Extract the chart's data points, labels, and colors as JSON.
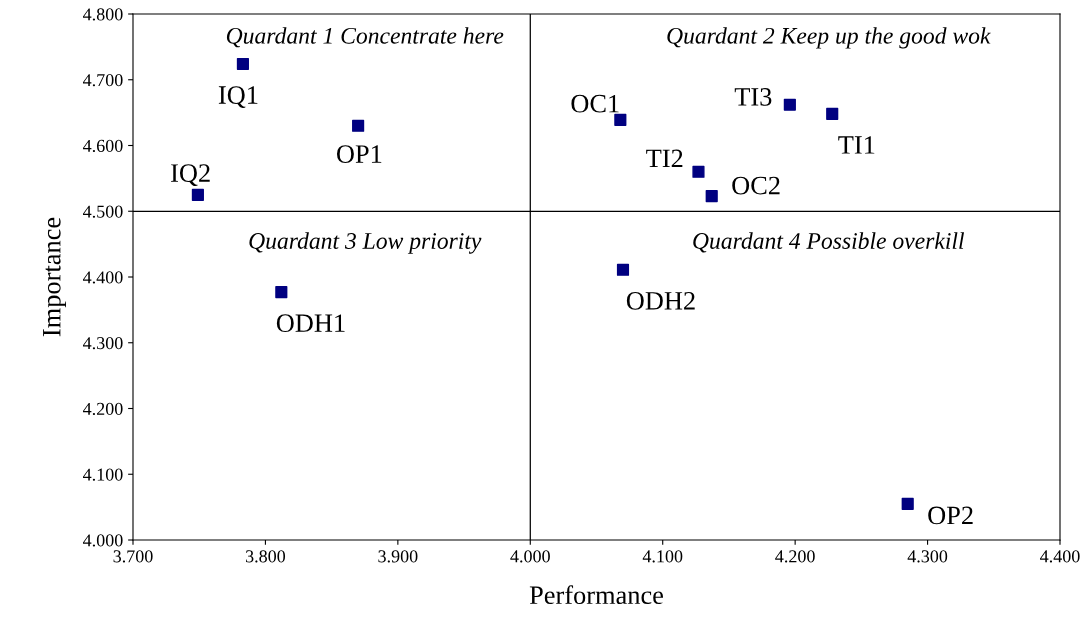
{
  "chart_data": {
    "type": "scatter",
    "xlabel": "Performance",
    "ylabel": "Importance",
    "x": [
      3.783,
      3.749,
      3.87,
      4.068,
      4.127,
      4.137,
      4.196,
      4.228,
      3.812,
      4.07,
      4.285
    ],
    "series": [
      {
        "color": "#000080",
        "values": [
          4.724,
          4.525,
          4.63,
          4.639,
          4.56,
          4.523,
          4.662,
          4.648,
          4.377,
          4.411,
          4.055
        ]
      }
    ],
    "marker": "square",
    "xlim": [
      3.7,
      4.4
    ],
    "xticks": [
      {
        "value": 3.7,
        "label": "3.700"
      },
      {
        "value": 3.8,
        "label": "3.800"
      },
      {
        "value": 3.9,
        "label": "3.900"
      },
      {
        "value": 4.0,
        "label": "4.000"
      },
      {
        "value": 4.1,
        "label": "4.100"
      },
      {
        "value": 4.2,
        "label": "4.200"
      },
      {
        "value": 4.3,
        "label": "4.300"
      },
      {
        "value": 4.4,
        "label": "4.400"
      }
    ],
    "ylim": [
      4.0,
      4.8
    ],
    "yticks": [
      {
        "value": 4.0,
        "label": "4.000"
      },
      {
        "value": 4.1,
        "label": "4.100"
      },
      {
        "value": 4.2,
        "label": "4.200"
      },
      {
        "value": 4.3,
        "label": "4.300"
      },
      {
        "value": 4.4,
        "label": "4.400"
      },
      {
        "value": 4.5,
        "label": "4.500"
      },
      {
        "value": 4.6,
        "label": "4.600"
      },
      {
        "value": 4.7,
        "label": "4.700"
      },
      {
        "value": 4.8,
        "label": "4.800"
      }
    ],
    "ref_lines": [
      {
        "axis": "x",
        "value": 4.0,
        "color": "#000000"
      },
      {
        "axis": "y",
        "value": 4.5,
        "color": "#000000"
      }
    ],
    "annotations": [
      "Quardant 1 Concentrate here",
      "Quardant 2 Keep up the good wok",
      "Quardant 3 Low priority",
      "Quardant 4 Possible overkill",
      {
        "text": "IQ1",
        "x": 3.783,
        "y": 4.724
      },
      {
        "text": "IQ2",
        "x": 3.749,
        "y": 4.525
      },
      {
        "text": "OP1",
        "x": 3.87,
        "y": 4.63
      },
      {
        "text": "OC1",
        "x": 4.068,
        "y": 4.639
      },
      {
        "text": "TI2",
        "x": 4.127,
        "y": 4.56
      },
      {
        "text": "OC2",
        "x": 4.137,
        "y": 4.523
      },
      {
        "text": "TI3",
        "x": 4.196,
        "y": 4.662
      },
      {
        "text": "TI1",
        "x": 4.228,
        "y": 4.648
      },
      {
        "text": "ODH1",
        "x": 3.812,
        "y": 4.377
      },
      {
        "text": "ODH2",
        "x": 4.07,
        "y": 4.411
      },
      {
        "text": "OP2",
        "x": 4.285,
        "y": 4.055
      }
    ],
    "grid": false,
    "legend": false
  }
}
